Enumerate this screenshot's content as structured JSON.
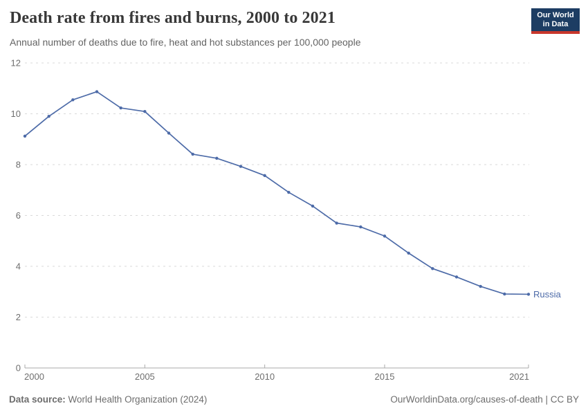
{
  "header": {
    "title": "Death rate from fires and burns, 2000 to 2021",
    "subtitle": "Annual number of deaths due to fire, heat and hot substances per 100,000 people",
    "logo": {
      "line1": "Our World",
      "line2": "in Data",
      "bg_color": "#1d3d63",
      "stripe_color": "#c9372c",
      "text_color": "#ffffff"
    }
  },
  "chart_data": {
    "type": "line",
    "title": "Death rate from fires and burns, 2000 to 2021",
    "xlabel": "",
    "ylabel": "",
    "x": [
      2000,
      2001,
      2002,
      2003,
      2004,
      2005,
      2006,
      2007,
      2008,
      2009,
      2010,
      2011,
      2012,
      2013,
      2014,
      2015,
      2016,
      2017,
      2018,
      2019,
      2020,
      2021
    ],
    "series": [
      {
        "name": "Russia",
        "color": "#4d6ba8",
        "values": [
          9.12,
          9.9,
          10.55,
          10.87,
          10.23,
          10.09,
          9.24,
          8.41,
          8.25,
          7.93,
          7.57,
          6.91,
          6.37,
          5.7,
          5.55,
          5.19,
          4.52,
          3.91,
          3.58,
          3.21,
          2.91,
          2.9
        ]
      }
    ],
    "ylim": [
      0,
      12
    ],
    "yticks": [
      0,
      2,
      4,
      6,
      8,
      10,
      12
    ],
    "xticks": [
      2000,
      2005,
      2010,
      2015,
      2021
    ],
    "grid": {
      "horizontal": true,
      "style": "dashed",
      "color": "#d9d9d9"
    },
    "axis_color": "#aaaaaa",
    "tick_label_color": "#6e6e6e",
    "legend_position": "end-of-line"
  },
  "footer": {
    "source_label": "Data source:",
    "source_text": " World Health Organization (2024)",
    "credit": "OurWorldinData.org/causes-of-death | CC BY"
  }
}
